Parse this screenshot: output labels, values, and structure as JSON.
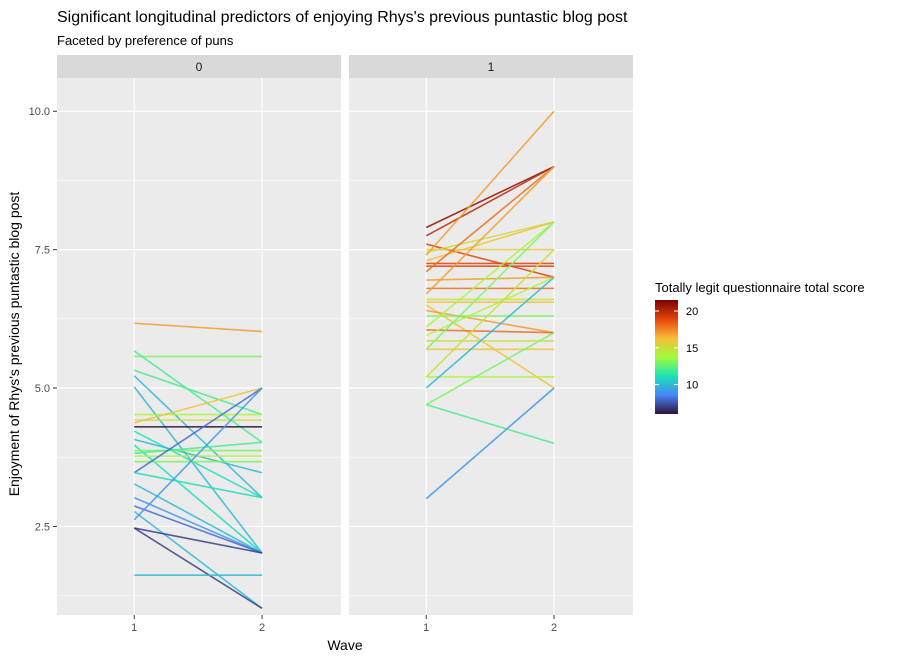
{
  "chart_data": {
    "type": "line",
    "title": "Significant longitudinal predictors of enjoying Rhys's previous puntastic blog post",
    "subtitle": "Faceted by preference of puns",
    "xlabel": "Wave",
    "ylabel": "Enjoyment of Rhys's previous puntastic blog post",
    "x_categories": [
      "1",
      "2"
    ],
    "ylim": [
      0.9,
      10.6
    ],
    "yticks": [
      2.5,
      5.0,
      7.5,
      10.0
    ],
    "ytick_labels": [
      "2.5",
      "5.0",
      "7.5",
      "10.0"
    ],
    "grid": true,
    "legend": {
      "title": "Totally legit questionnaire total score",
      "position": "right",
      "range": [
        6,
        21.5
      ],
      "ticks": [
        10,
        15,
        20
      ],
      "tick_labels": [
        "10",
        "15",
        "20"
      ],
      "colors": [
        "#30123b",
        "#4686fb",
        "#1ae4b6",
        "#a2fc3c",
        "#fabb39",
        "#e3440a",
        "#7a0403"
      ]
    },
    "facets": [
      {
        "label": "0",
        "series": [
          {
            "values": [
              6.17,
              6.02
            ],
            "score": 17
          },
          {
            "values": [
              5.57,
              5.57
            ],
            "score": 13
          },
          {
            "values": [
              5.67,
              4.02
            ],
            "score": 12
          },
          {
            "values": [
              5.32,
              4.52
            ],
            "score": 12
          },
          {
            "values": [
              5.22,
              3.02
            ],
            "score": 10
          },
          {
            "values": [
              5.02,
              2.02
            ],
            "score": 10
          },
          {
            "values": [
              4.52,
              4.52
            ],
            "score": 14
          },
          {
            "values": [
              4.42,
              4.42
            ],
            "score": 15
          },
          {
            "values": [
              4.37,
              5.0
            ],
            "score": 16
          },
          {
            "values": [
              4.3,
              4.3
            ],
            "score": 6
          },
          {
            "values": [
              4.22,
              3.02
            ],
            "score": 11
          },
          {
            "values": [
              4.07,
              3.47
            ],
            "score": 10
          },
          {
            "values": [
              3.97,
              2.02
            ],
            "score": 11
          },
          {
            "values": [
              3.87,
              3.87
            ],
            "score": 13
          },
          {
            "values": [
              3.82,
              4.02
            ],
            "score": 12
          },
          {
            "values": [
              3.77,
              3.77
            ],
            "score": 14
          },
          {
            "values": [
              3.67,
              3.67
            ],
            "score": 13
          },
          {
            "values": [
              3.47,
              5.0
            ],
            "score": 8
          },
          {
            "values": [
              3.47,
              3.02
            ],
            "score": 11
          },
          {
            "values": [
              3.27,
              2.02
            ],
            "score": 10
          },
          {
            "values": [
              3.02,
              2.02
            ],
            "score": 9
          },
          {
            "values": [
              2.87,
              2.02
            ],
            "score": 8
          },
          {
            "values": [
              2.77,
              1.02
            ],
            "score": 10
          },
          {
            "values": [
              2.62,
              5.0
            ],
            "score": 9
          },
          {
            "values": [
              2.47,
              2.02
            ],
            "score": 7
          },
          {
            "values": [
              2.47,
              1.02
            ],
            "score": 7
          },
          {
            "values": [
              1.62,
              1.62
            ],
            "score": 10
          }
        ]
      },
      {
        "label": "1",
        "series": [
          {
            "values": [
              7.9,
              9.0
            ],
            "score": 21
          },
          {
            "values": [
              7.75,
              9.0
            ],
            "score": 20
          },
          {
            "values": [
              7.6,
              7.0
            ],
            "score": 19
          },
          {
            "values": [
              7.5,
              7.5
            ],
            "score": 16
          },
          {
            "values": [
              7.45,
              8.0
            ],
            "score": 15
          },
          {
            "values": [
              7.4,
              10.0
            ],
            "score": 17
          },
          {
            "values": [
              7.3,
              8.0
            ],
            "score": 16
          },
          {
            "values": [
              7.25,
              7.25
            ],
            "score": 19
          },
          {
            "values": [
              7.2,
              7.2
            ],
            "score": 19
          },
          {
            "values": [
              7.1,
              9.0
            ],
            "score": 18
          },
          {
            "values": [
              6.95,
              7.0
            ],
            "score": 17
          },
          {
            "values": [
              6.8,
              6.8
            ],
            "score": 18
          },
          {
            "values": [
              6.7,
              9.0
            ],
            "score": 17
          },
          {
            "values": [
              6.6,
              6.6
            ],
            "score": 15
          },
          {
            "values": [
              6.55,
              6.55
            ],
            "score": 16
          },
          {
            "values": [
              6.5,
              5.0
            ],
            "score": 16
          },
          {
            "values": [
              6.4,
              6.0
            ],
            "score": 17
          },
          {
            "values": [
              6.3,
              6.3
            ],
            "score": 13
          },
          {
            "values": [
              6.1,
              8.0
            ],
            "score": 14
          },
          {
            "values": [
              6.05,
              6.0
            ],
            "score": 18
          },
          {
            "values": [
              5.95,
              7.0
            ],
            "score": 14
          },
          {
            "values": [
              5.85,
              5.85
            ],
            "score": 15
          },
          {
            "values": [
              5.7,
              8.0
            ],
            "score": 13
          },
          {
            "values": [
              5.7,
              5.7
            ],
            "score": 16
          },
          {
            "values": [
              5.2,
              7.5
            ],
            "score": 15
          },
          {
            "values": [
              5.2,
              5.2
            ],
            "score": 14
          },
          {
            "values": [
              5.0,
              7.0
            ],
            "score": 10
          },
          {
            "values": [
              4.7,
              6.0
            ],
            "score": 13
          },
          {
            "values": [
              4.7,
              4.0
            ],
            "score": 12
          },
          {
            "values": [
              3.0,
              5.0
            ],
            "score": 9
          }
        ]
      }
    ]
  }
}
